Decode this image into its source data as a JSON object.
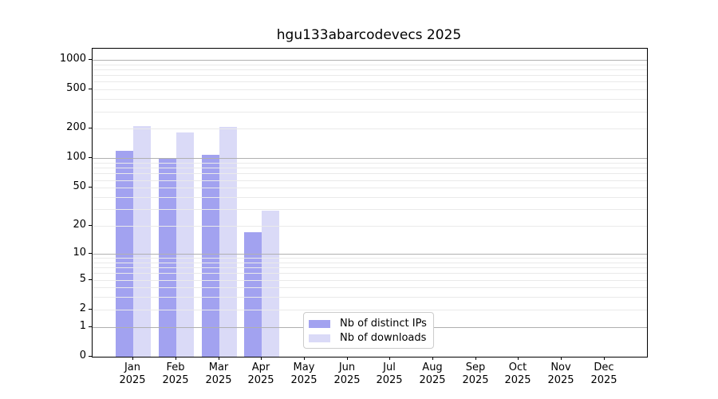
{
  "title": "hgu133abarcodevecs 2025",
  "chart_data": {
    "type": "bar",
    "title": "hgu133abarcodevecs 2025",
    "categories": [
      "Jan",
      "Feb",
      "Mar",
      "Apr",
      "May",
      "Jun",
      "Jul",
      "Aug",
      "Sep",
      "Oct",
      "Nov",
      "Dec"
    ],
    "category_year": "2025",
    "series": [
      {
        "name": "Nb of distinct IPs",
        "color": "#a2a2f0",
        "values": [
          120,
          100,
          108,
          17,
          0,
          0,
          0,
          0,
          0,
          0,
          0,
          0
        ]
      },
      {
        "name": "Nb of downloads",
        "color": "#dadaf7",
        "values": [
          215,
          185,
          208,
          29,
          0,
          0,
          0,
          0,
          0,
          0,
          0,
          0
        ]
      }
    ],
    "y_scale": "log10(1+x)",
    "y_ticks": [
      1000,
      500,
      200,
      100,
      50,
      20,
      10,
      5,
      2,
      1,
      0
    ],
    "y_grid_major": [
      1,
      10,
      100,
      1000
    ],
    "y_grid_minor": [
      2,
      3,
      4,
      5,
      6,
      7,
      8,
      9,
      20,
      30,
      40,
      50,
      60,
      70,
      80,
      90,
      200,
      300,
      400,
      500,
      600,
      700,
      800,
      900
    ],
    "ylim": [
      0,
      1300
    ],
    "grid": "on",
    "legend_position": "bottom-center-inside",
    "xlabel": "",
    "ylabel": ""
  },
  "colors": {
    "background": "#ffffff",
    "axis": "#000000",
    "grid_major": "#b0b0b0",
    "grid_minor": "#eaeaea",
    "legend_border": "#cccccc",
    "text": "#000000"
  }
}
